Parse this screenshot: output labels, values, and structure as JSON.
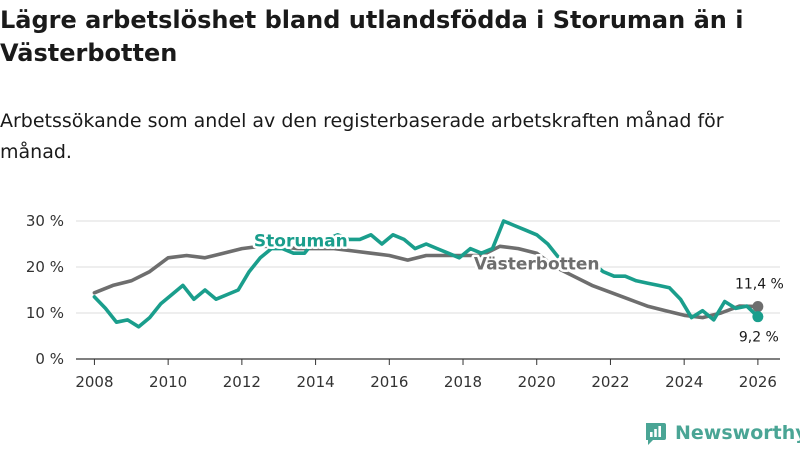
{
  "title": "Lägre arbetslöshet bland utlandsfödda i Storuman än i Västerbotten",
  "subtitle": "Arbetssökande som andel av den registerbaserade arbetskraften månad för månad.",
  "brand": "Newsworthy",
  "colors": {
    "storuman": "#1a9e8c",
    "vasterbotten": "#6e6e6e",
    "grid": "#dddddd",
    "brand": "#4aa595"
  },
  "chart_data": {
    "type": "line",
    "title": "Lägre arbetslöshet bland utlandsfödda i Storuman än i Västerbotten",
    "xlabel": "",
    "ylabel": "",
    "xlim": [
      2007.5,
      2026.6
    ],
    "ylim": [
      0,
      30
    ],
    "yticks": [
      0,
      10,
      20,
      30
    ],
    "ytick_labels": [
      "0 %",
      "10 %",
      "20 %",
      "30 %"
    ],
    "xticks": [
      2008,
      2010,
      2012,
      2014,
      2016,
      2018,
      2020,
      2022,
      2024,
      2026
    ],
    "xtick_labels": [
      "2008",
      "2010",
      "2012",
      "2014",
      "2016",
      "2018",
      "2020",
      "2022",
      "2024",
      "2026"
    ],
    "series": [
      {
        "name": "Västerbotten",
        "color": "#6e6e6e",
        "label": "Västerbotten",
        "end_label": "11,4 %",
        "x": [
          2008,
          2008.5,
          2009,
          2009.5,
          2010,
          2010.5,
          2011,
          2011.5,
          2012,
          2012.5,
          2013,
          2013.5,
          2014,
          2014.5,
          2015,
          2015.5,
          2016,
          2016.5,
          2017,
          2017.5,
          2018,
          2018.5,
          2019,
          2019.5,
          2020,
          2020.5,
          2021,
          2021.5,
          2022,
          2022.5,
          2023,
          2023.5,
          2024,
          2024.5,
          2025,
          2025.5,
          2026
        ],
        "y": [
          14.4,
          16,
          17,
          19,
          22,
          22.5,
          22,
          23,
          24,
          24.5,
          24.5,
          24,
          24,
          24,
          23.5,
          23,
          22.5,
          21.5,
          22.5,
          22.5,
          22.5,
          22.5,
          24.5,
          24,
          23,
          20,
          18,
          16,
          14.5,
          13,
          11.5,
          10.5,
          9.5,
          9,
          10,
          11.5,
          11.4
        ]
      },
      {
        "name": "Storuman",
        "color": "#1a9e8c",
        "label": "Storuman",
        "end_label": "9,2 %",
        "x": [
          2008,
          2008.3,
          2008.6,
          2008.9,
          2009.2,
          2009.5,
          2009.8,
          2010.1,
          2010.4,
          2010.7,
          2011,
          2011.3,
          2011.6,
          2011.9,
          2012.2,
          2012.5,
          2012.8,
          2013.1,
          2013.4,
          2013.7,
          2014,
          2014.3,
          2014.6,
          2014.9,
          2015.2,
          2015.5,
          2015.8,
          2016.1,
          2016.4,
          2016.7,
          2017,
          2017.3,
          2017.6,
          2017.9,
          2018.2,
          2018.5,
          2018.8,
          2019.1,
          2019.4,
          2019.7,
          2020,
          2020.3,
          2020.6,
          2020.9,
          2021.2,
          2021.5,
          2021.8,
          2022.1,
          2022.4,
          2022.7,
          2023,
          2023.3,
          2023.6,
          2023.9,
          2024.2,
          2024.5,
          2024.8,
          2025.1,
          2025.4,
          2025.7,
          2026
        ],
        "y": [
          13.5,
          11,
          8,
          8.5,
          7,
          9,
          12,
          14,
          16,
          13,
          15,
          13,
          14,
          15,
          19,
          22,
          24,
          24,
          23,
          23,
          26,
          26,
          27,
          26,
          26,
          27,
          25,
          27,
          26,
          24,
          25,
          24,
          23,
          22,
          24,
          23,
          24,
          30,
          29,
          28,
          27,
          25,
          22,
          21,
          20,
          21,
          19,
          18,
          18,
          17,
          16.5,
          16,
          15.5,
          13,
          9,
          10.5,
          8.5,
          12.5,
          11,
          11.5,
          9.2
        ]
      }
    ]
  }
}
